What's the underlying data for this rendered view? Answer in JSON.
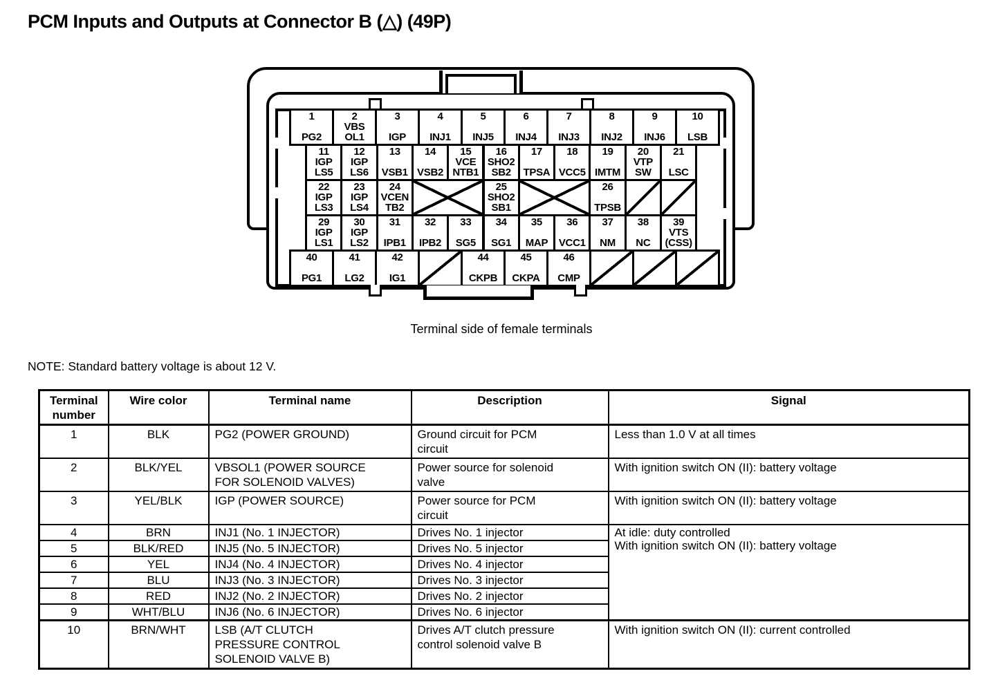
{
  "title": "PCM Inputs and Outputs at Connector B (△) (49P)",
  "note": "NOTE: Standard battery voltage is about 12 V.",
  "connector": {
    "caption": "Terminal side of female terminals",
    "rows": [
      [
        {
          "n": "1",
          "label": [
            "PG2"
          ]
        },
        {
          "n": "2",
          "label": [
            "VBS",
            "OL1"
          ]
        },
        {
          "n": "3",
          "label": [
            "IGP"
          ]
        },
        {
          "n": "4",
          "label": [
            "INJ1"
          ]
        },
        {
          "n": "5",
          "label": [
            "INJ5"
          ]
        },
        {
          "n": "6",
          "label": [
            "INJ4"
          ]
        },
        {
          "n": "7",
          "label": [
            "INJ3"
          ]
        },
        {
          "n": "8",
          "label": [
            "INJ2"
          ]
        },
        {
          "n": "9",
          "label": [
            "INJ6"
          ]
        },
        {
          "n": "10",
          "label": [
            "LSB"
          ]
        }
      ],
      [
        {
          "n": "11",
          "label": [
            "IGP",
            "LS5"
          ]
        },
        {
          "n": "12",
          "label": [
            "IGP",
            "LS6"
          ]
        },
        {
          "n": "13",
          "label": [
            "VSB1"
          ]
        },
        {
          "n": "14",
          "label": [
            "VSB2"
          ]
        },
        {
          "n": "15",
          "label": [
            "VCE",
            "NTB1"
          ]
        },
        {
          "n": "16",
          "label": [
            "SHO2",
            "SB2"
          ]
        },
        {
          "n": "17",
          "label": [
            "TPSA"
          ]
        },
        {
          "n": "18",
          "label": [
            "VCC5"
          ]
        },
        {
          "n": "19",
          "label": [
            "IMTM"
          ]
        },
        {
          "n": "20",
          "label": [
            "VTP",
            "SW"
          ]
        },
        {
          "n": "21",
          "label": [
            "LSC"
          ]
        }
      ],
      [
        {
          "n": "22",
          "label": [
            "IGP",
            "LS3"
          ]
        },
        {
          "n": "23",
          "label": [
            "IGP",
            "LS4"
          ]
        },
        {
          "n": "24",
          "label": [
            "VCEN",
            "TB2"
          ]
        },
        {
          "type": "x",
          "span": 2
        },
        {
          "n": "25",
          "label": [
            "SHO2",
            "SB1"
          ]
        },
        {
          "type": "x",
          "span": 2
        },
        {
          "n": "26",
          "label": [
            "TPSB"
          ]
        },
        {
          "type": "slash"
        },
        {
          "type": "slash"
        }
      ],
      [
        {
          "n": "29",
          "label": [
            "IGP",
            "LS1"
          ]
        },
        {
          "n": "30",
          "label": [
            "IGP",
            "LS2"
          ]
        },
        {
          "n": "31",
          "label": [
            "IPB1"
          ]
        },
        {
          "n": "32",
          "label": [
            "IPB2"
          ]
        },
        {
          "n": "33",
          "label": [
            "SG5"
          ]
        },
        {
          "n": "34",
          "label": [
            "SG1"
          ]
        },
        {
          "n": "35",
          "label": [
            "MAP"
          ]
        },
        {
          "n": "36",
          "label": [
            "VCC1"
          ]
        },
        {
          "n": "37",
          "label": [
            "NM"
          ]
        },
        {
          "n": "38",
          "label": [
            "NC"
          ]
        },
        {
          "n": "39",
          "label": [
            "VTS",
            "(CSS)"
          ]
        }
      ],
      [
        {
          "n": "40",
          "label": [
            "PG1"
          ]
        },
        {
          "n": "41",
          "label": [
            "LG2"
          ]
        },
        {
          "n": "42",
          "label": [
            "IG1"
          ]
        },
        {
          "type": "slash"
        },
        {
          "n": "44",
          "label": [
            "CKPB"
          ]
        },
        {
          "n": "45",
          "label": [
            "CKPA"
          ]
        },
        {
          "n": "46",
          "label": [
            "CMP"
          ]
        },
        {
          "type": "slash"
        },
        {
          "type": "slash"
        },
        {
          "type": "slash"
        }
      ]
    ]
  },
  "table": {
    "headers": [
      "Terminal number",
      "Wire color",
      "Terminal name",
      "Description",
      "Signal"
    ],
    "rows": [
      {
        "num": "1",
        "color": "BLK",
        "name": "PG2 (POWER GROUND)",
        "desc": "Ground circuit for PCM\ncircuit",
        "signal": "Less than 1.0 V at all times"
      },
      {
        "num": "2",
        "color": "BLK/YEL",
        "name": "VBSOL1 (POWER SOURCE\nFOR SOLENOID VALVES)",
        "desc": "Power source for solenoid\nvalve",
        "signal": "With ignition switch ON (II): battery voltage"
      },
      {
        "num": "3",
        "color": "YEL/BLK",
        "name": "IGP (POWER SOURCE)",
        "desc": "Power source for PCM\ncircuit",
        "signal": "With ignition switch ON (II): battery voltage"
      },
      {
        "num": "4",
        "color": "BRN",
        "name": "INJ1 (No. 1 INJECTOR)",
        "desc": "Drives No. 1 injector",
        "signal": "At idle: duty controlled\nWith ignition switch ON (II): battery voltage",
        "signal_rowspan": 6,
        "compact": true
      },
      {
        "num": "5",
        "color": "BLK/RED",
        "name": "INJ5 (No. 5 INJECTOR)",
        "desc": "Drives No. 5 injector",
        "signal": null,
        "compact": true
      },
      {
        "num": "6",
        "color": "YEL",
        "name": "INJ4 (No. 4 INJECTOR)",
        "desc": "Drives No. 4 injector",
        "signal": null,
        "compact": true
      },
      {
        "num": "7",
        "color": "BLU",
        "name": "INJ3 (No. 3 INJECTOR)",
        "desc": "Drives No. 3 injector",
        "signal": null,
        "compact": true
      },
      {
        "num": "8",
        "color": "RED",
        "name": "INJ2 (No. 2 INJECTOR)",
        "desc": "Drives No. 2 injector",
        "signal": null,
        "compact": true
      },
      {
        "num": "9",
        "color": "WHT/BLU",
        "name": "INJ6 (No. 6 INJECTOR)",
        "desc": "Drives No. 6 injector",
        "signal": null,
        "compact": true
      },
      {
        "num": "10",
        "color": "BRN/WHT",
        "name": "LSB (A/T CLUTCH\nPRESSURE CONTROL\nSOLENOID VALVE B)",
        "desc": "Drives A/T clutch pressure\ncontrol solenoid valve B",
        "signal": "With ignition switch ON (II): current controlled",
        "thick_top": true
      }
    ]
  }
}
